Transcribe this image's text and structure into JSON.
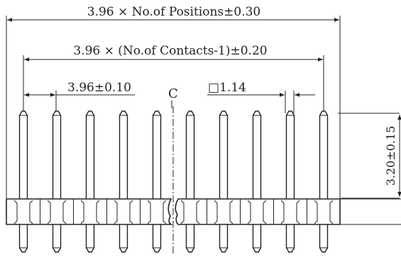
{
  "dimensions": {
    "overall": "3.96 × No.of Positions±0.30",
    "contacts": "3.96 × (No.of Contacts-1)±0.20",
    "pitch": "3.96±0.10",
    "pin_size": "□1.14",
    "height": "3.20±0.15"
  },
  "centerline_label": "C",
  "pin_count": 10
}
